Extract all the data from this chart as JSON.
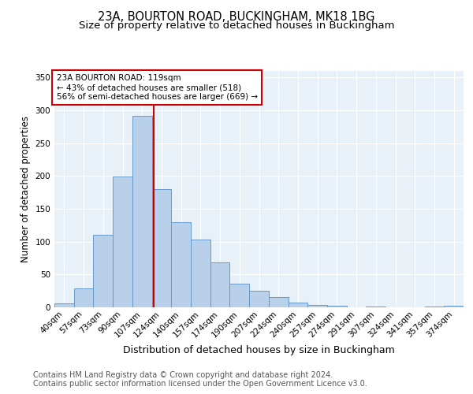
{
  "title_line1": "23A, BOURTON ROAD, BUCKINGHAM, MK18 1BG",
  "title_line2": "Size of property relative to detached houses in Buckingham",
  "xlabel": "Distribution of detached houses by size in Buckingham",
  "ylabel": "Number of detached properties",
  "categories": [
    "40sqm",
    "57sqm",
    "73sqm",
    "90sqm",
    "107sqm",
    "124sqm",
    "140sqm",
    "157sqm",
    "174sqm",
    "190sqm",
    "207sqm",
    "224sqm",
    "240sqm",
    "257sqm",
    "274sqm",
    "291sqm",
    "307sqm",
    "324sqm",
    "341sqm",
    "357sqm",
    "374sqm"
  ],
  "values": [
    6,
    29,
    110,
    199,
    292,
    180,
    130,
    103,
    68,
    36,
    25,
    16,
    7,
    4,
    2,
    0,
    1,
    0,
    0,
    1,
    2
  ],
  "bar_color": "#b8d0ea",
  "bar_edge_color": "#6699cc",
  "vline_color": "#cc0000",
  "vline_x_index": 4.58,
  "annotation_text": "23A BOURTON ROAD: 119sqm\n← 43% of detached houses are smaller (518)\n56% of semi-detached houses are larger (669) →",
  "annotation_box_color": "white",
  "annotation_box_edge": "#cc0000",
  "footer_line1": "Contains HM Land Registry data © Crown copyright and database right 2024.",
  "footer_line2": "Contains public sector information licensed under the Open Government Licence v3.0.",
  "plot_bg_color": "#e8f0f8",
  "fig_bg_color": "#ffffff",
  "ylim": [
    0,
    360
  ],
  "yticks": [
    0,
    50,
    100,
    150,
    200,
    250,
    300,
    350
  ],
  "grid_color": "#ffffff",
  "title_fontsize": 10.5,
  "subtitle_fontsize": 9.5,
  "ylabel_fontsize": 8.5,
  "xlabel_fontsize": 9,
  "tick_fontsize": 7.5,
  "ann_fontsize": 7.5,
  "footer_fontsize": 7
}
